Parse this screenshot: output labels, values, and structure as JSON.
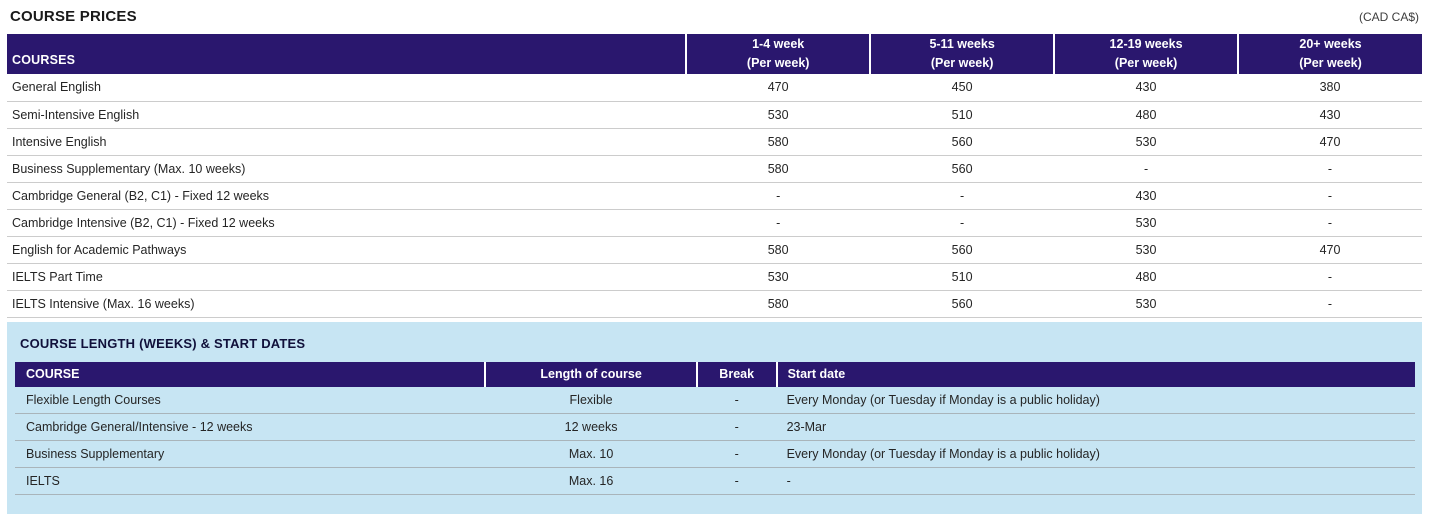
{
  "page": {
    "title": "COURSE PRICES",
    "currency_note": "(CAD CA$)"
  },
  "colors": {
    "table_header_bg": "#2a176e",
    "table_header_text": "#ffffff",
    "panel_bg": "#c7e5f3",
    "body_text": "#252525",
    "row_border_white_table": "#cccccc",
    "row_border_blue_panel": "#a9b4ba"
  },
  "price_table": {
    "courses_header": "COURSES",
    "week_headers": [
      {
        "range": "1-4 week",
        "unit": "(Per week)"
      },
      {
        "range": "5-11 weeks",
        "unit": "(Per week)"
      },
      {
        "range": "12-19 weeks",
        "unit": "(Per week)"
      },
      {
        "range": "20+ weeks",
        "unit": "(Per week)"
      }
    ],
    "rows": [
      {
        "course": "General English",
        "prices": [
          "470",
          "450",
          "430",
          "380"
        ]
      },
      {
        "course": "Semi-Intensive English",
        "prices": [
          "530",
          "510",
          "480",
          "430"
        ]
      },
      {
        "course": "Intensive English",
        "prices": [
          "580",
          "560",
          "530",
          "470"
        ]
      },
      {
        "course": "Business Supplementary (Max. 10 weeks)",
        "prices": [
          "580",
          "560",
          "-",
          "-"
        ]
      },
      {
        "course": "Cambridge General (B2, C1) - Fixed 12 weeks",
        "prices": [
          "-",
          "-",
          "430",
          "-"
        ]
      },
      {
        "course": "Cambridge Intensive (B2, C1) - Fixed 12 weeks",
        "prices": [
          "-",
          "-",
          "530",
          "-"
        ]
      },
      {
        "course": "English for Academic Pathways",
        "prices": [
          "580",
          "560",
          "530",
          "470"
        ]
      },
      {
        "course": "IELTS Part Time",
        "prices": [
          "530",
          "510",
          "480",
          "-"
        ]
      },
      {
        "course": "IELTS Intensive (Max. 16 weeks)",
        "prices": [
          "580",
          "560",
          "530",
          "-"
        ]
      }
    ]
  },
  "length_section": {
    "heading": "COURSE LENGTH (WEEKS) & START DATES",
    "headers": {
      "course": "COURSE",
      "length": "Length of course",
      "break": "Break",
      "start": "Start date"
    },
    "rows": [
      {
        "course": "Flexible Length Courses",
        "length": "Flexible",
        "break": "-",
        "start": "Every Monday (or Tuesday if Monday is a public holiday)"
      },
      {
        "course": "Cambridge General/Intensive - 12 weeks",
        "length": "12 weeks",
        "break": "-",
        "start": "23-Mar"
      },
      {
        "course": "Business Supplementary",
        "length": "Max. 10",
        "break": "-",
        "start": "Every Monday (or Tuesday if Monday is a public holiday)"
      },
      {
        "course": "IELTS",
        "length": "Max. 16",
        "break": "-",
        "start": "-"
      }
    ]
  }
}
